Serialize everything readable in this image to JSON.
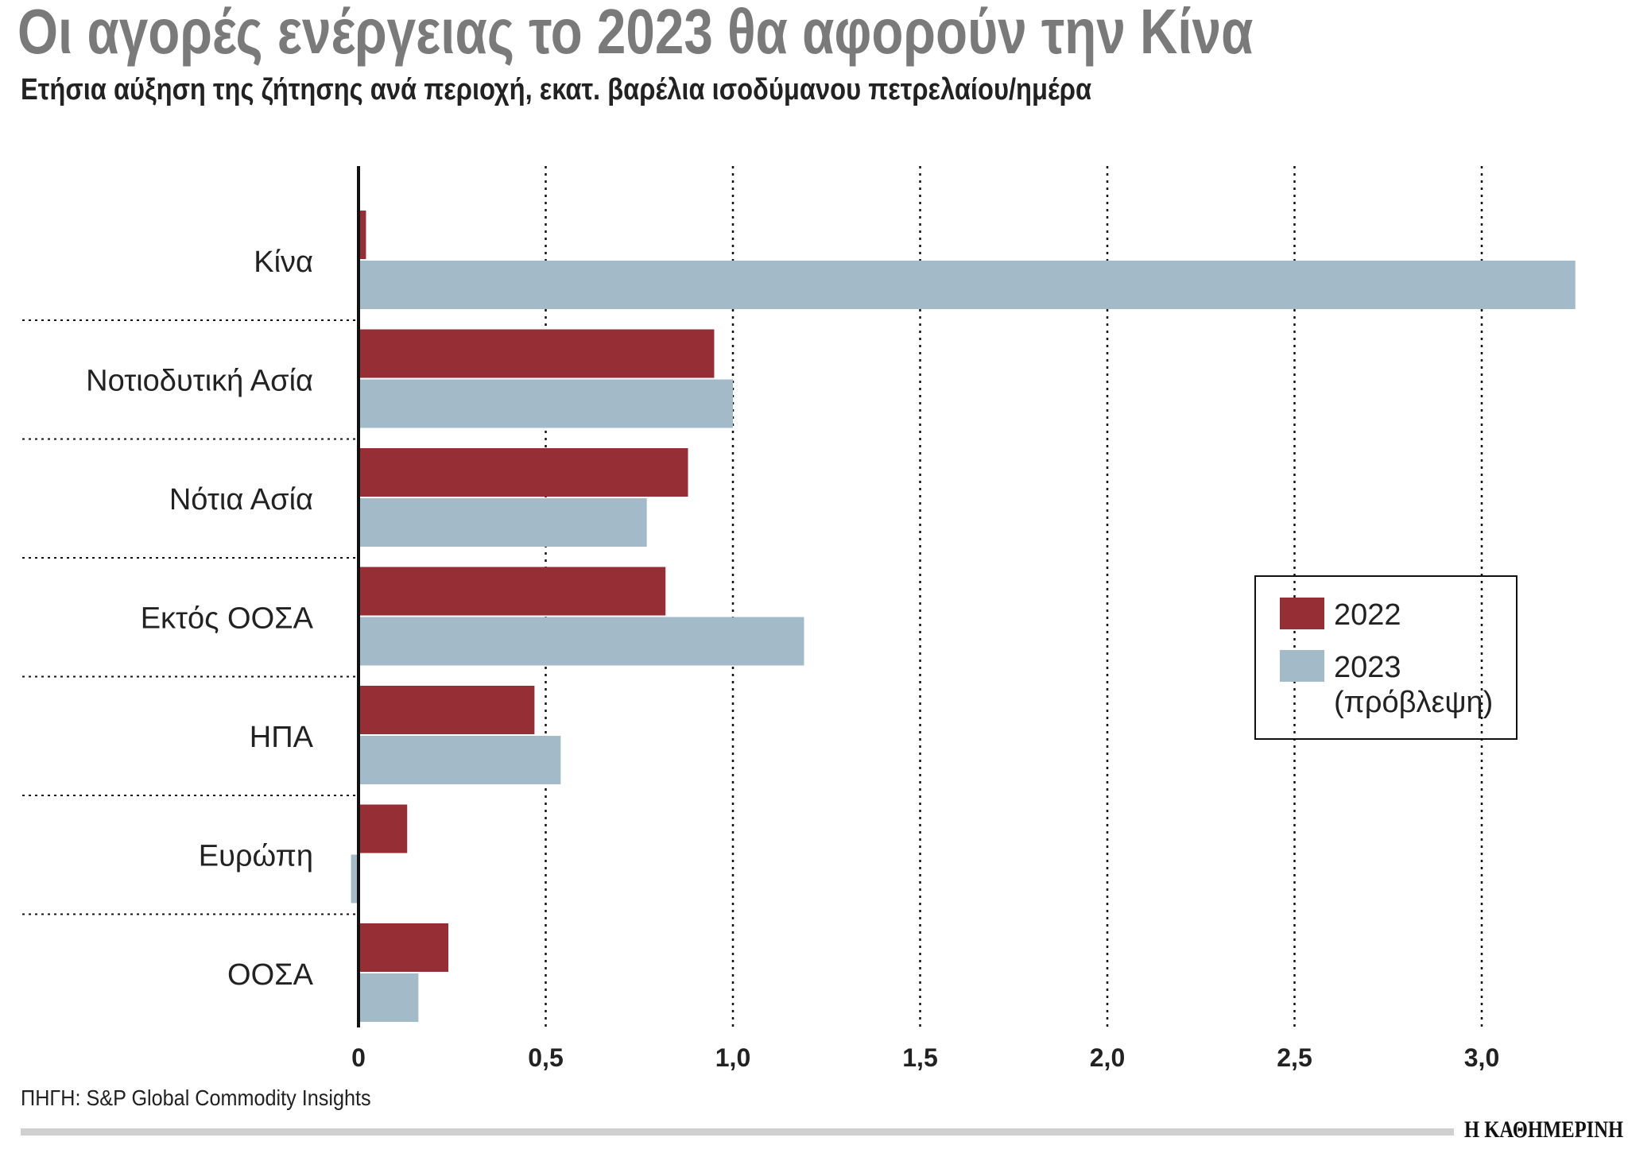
{
  "chart_data": {
    "type": "bar",
    "orientation": "horizontal",
    "title": "Οι αγορές ενέργειας το 2023 θα αφορούν την Κίνα",
    "subtitle": "Ετήσια αύξηση της ζήτησης ανά περιοχή, εκατ. βαρέλια ισοδύμανου πετρελαίου/ημέρα",
    "categories": [
      "Κίνα",
      "Νοτιοδυτική Ασία",
      "Νότια Ασία",
      "Εκτός ΟΟΣΑ",
      "ΗΠΑ",
      "Ευρώπη",
      "ΟΟΣΑ"
    ],
    "series": [
      {
        "name": "2022",
        "color": "#962e35",
        "values": [
          0.02,
          0.95,
          0.88,
          0.82,
          0.47,
          0.13,
          0.24
        ]
      },
      {
        "name": "2023\n(πρόβλεψη)",
        "color": "#a3bbc8",
        "values": [
          3.25,
          1.0,
          0.77,
          1.19,
          0.54,
          -0.02,
          0.16
        ]
      }
    ],
    "xlim": [
      0,
      3.3
    ],
    "xticks": [
      0,
      0.5,
      1.0,
      1.5,
      2.0,
      2.5,
      3.0
    ],
    "xtick_labels": [
      "0",
      "0,5",
      "1,0",
      "1,5",
      "2,0",
      "2,5",
      "3,0"
    ],
    "grid": "vertical dotted",
    "legend_placement": "right"
  },
  "source": "ΠΗΓΗ: S&P Global Commodity Insights",
  "logo": "Η ΚΑΘΗΜΕΡΙΝΗ"
}
